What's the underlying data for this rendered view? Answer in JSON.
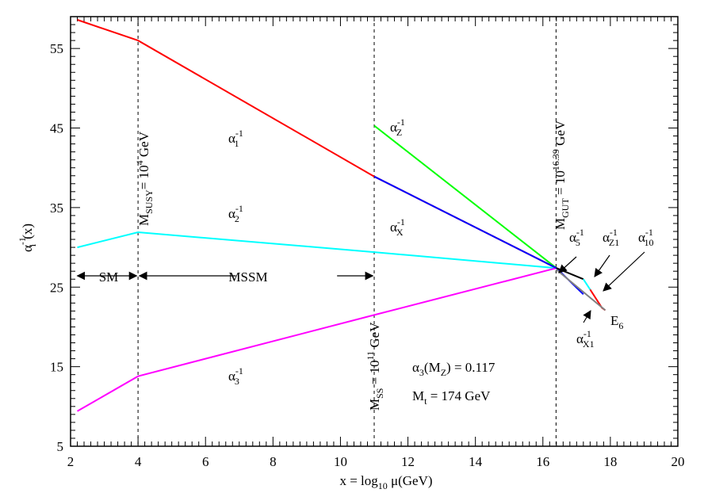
{
  "chart_data": {
    "type": "line",
    "xlabel": {
      "pre": "x = log",
      "sub": "10",
      "post": " μ(GeV)"
    },
    "ylabel": {
      "base": "α",
      "sup": "-1",
      "sub": "i",
      "post": "(x)"
    },
    "xlim": [
      2,
      20
    ],
    "ylim": [
      5,
      59
    ],
    "x_ticks": [
      "2",
      "4",
      "6",
      "8",
      "10",
      "12",
      "14",
      "16",
      "18",
      "20"
    ],
    "y_ticks": [
      "5",
      "15",
      "25",
      "35",
      "45",
      "55"
    ],
    "grid": false,
    "vlines": [
      {
        "x": 4,
        "label": {
          "base": "M",
          "sub": "SUSY",
          "mid": "= 10",
          "sup": "4",
          "post": " GeV"
        }
      },
      {
        "x": 11,
        "label": {
          "base": "M",
          "sub": "SS",
          "mid": " = 10",
          "sup": "11",
          "post": " GeV"
        }
      },
      {
        "x": 16.39,
        "label": {
          "base": "M",
          "sub": "GUT",
          "mid": " = 10",
          "sup": "16.39",
          "post": " GeV"
        }
      }
    ],
    "series": [
      {
        "color": "#ff0000",
        "points": [
          [
            2.2,
            58.6
          ],
          [
            4,
            56
          ],
          [
            11,
            38.9
          ],
          [
            16.4,
            27.4
          ]
        ]
      },
      {
        "color": "#00ffff",
        "points": [
          [
            2.2,
            30
          ],
          [
            4,
            31.9
          ],
          [
            11,
            29.4
          ],
          [
            16.4,
            27.4
          ]
        ]
      },
      {
        "color": "#ff00ff",
        "points": [
          [
            2.2,
            9.4
          ],
          [
            4,
            13.8
          ],
          [
            11,
            21.5
          ],
          [
            16.4,
            27.4
          ]
        ]
      },
      {
        "color": "#00ff00",
        "points": [
          [
            11,
            45.3
          ],
          [
            16.4,
            27.4
          ]
        ]
      },
      {
        "color": "#0000ff",
        "points": [
          [
            11,
            38.9
          ],
          [
            16.4,
            27.4
          ],
          [
            17.2,
            24.1
          ]
        ]
      },
      {
        "color": "#000000",
        "points": [
          [
            16.4,
            27.4
          ],
          [
            17.2,
            26.0
          ]
        ]
      },
      {
        "color": "#00ffff",
        "points": [
          [
            17.2,
            26.0
          ],
          [
            17.4,
            24.7
          ]
        ]
      },
      {
        "color": "#ff0000",
        "points": [
          [
            17.4,
            24.7
          ],
          [
            17.75,
            22.4
          ],
          [
            17.85,
            22.1
          ]
        ]
      },
      {
        "color": "#808080",
        "points": [
          [
            16.4,
            27.2
          ],
          [
            17.85,
            22.1
          ]
        ]
      }
    ],
    "labels": {
      "a1": {
        "base": "α",
        "sub": "1",
        "sup": "-1"
      },
      "a2": {
        "base": "α",
        "sub": "2",
        "sup": "-1"
      },
      "a3": {
        "base": "α",
        "sub": "3",
        "sup": "-1"
      },
      "aZ": {
        "base": "α",
        "sub": "Z",
        "sup": "-1"
      },
      "aX": {
        "base": "α",
        "sub": "X",
        "sup": "-1"
      },
      "a5": {
        "base": "α",
        "sub": "5",
        "sup": "-1"
      },
      "aZ1": {
        "base": "α",
        "sub": "Z1",
        "sup": "-1"
      },
      "a10": {
        "base": "α",
        "sub": "10",
        "sup": "-1"
      },
      "aX1": {
        "base": "α",
        "sub": "X1",
        "sup": "-1"
      },
      "E6": {
        "base": "E",
        "sub": "6"
      }
    },
    "regions": {
      "sm": "SM",
      "mssm": "MSSM"
    },
    "annotations": {
      "alpha3": {
        "pre": "α",
        "sub1": "3",
        "mid": "(M",
        "sub2": "Z",
        "post": ") = 0.117"
      },
      "mt": {
        "pre": "M",
        "sub": "t",
        "post": " = 174 GeV"
      }
    }
  }
}
